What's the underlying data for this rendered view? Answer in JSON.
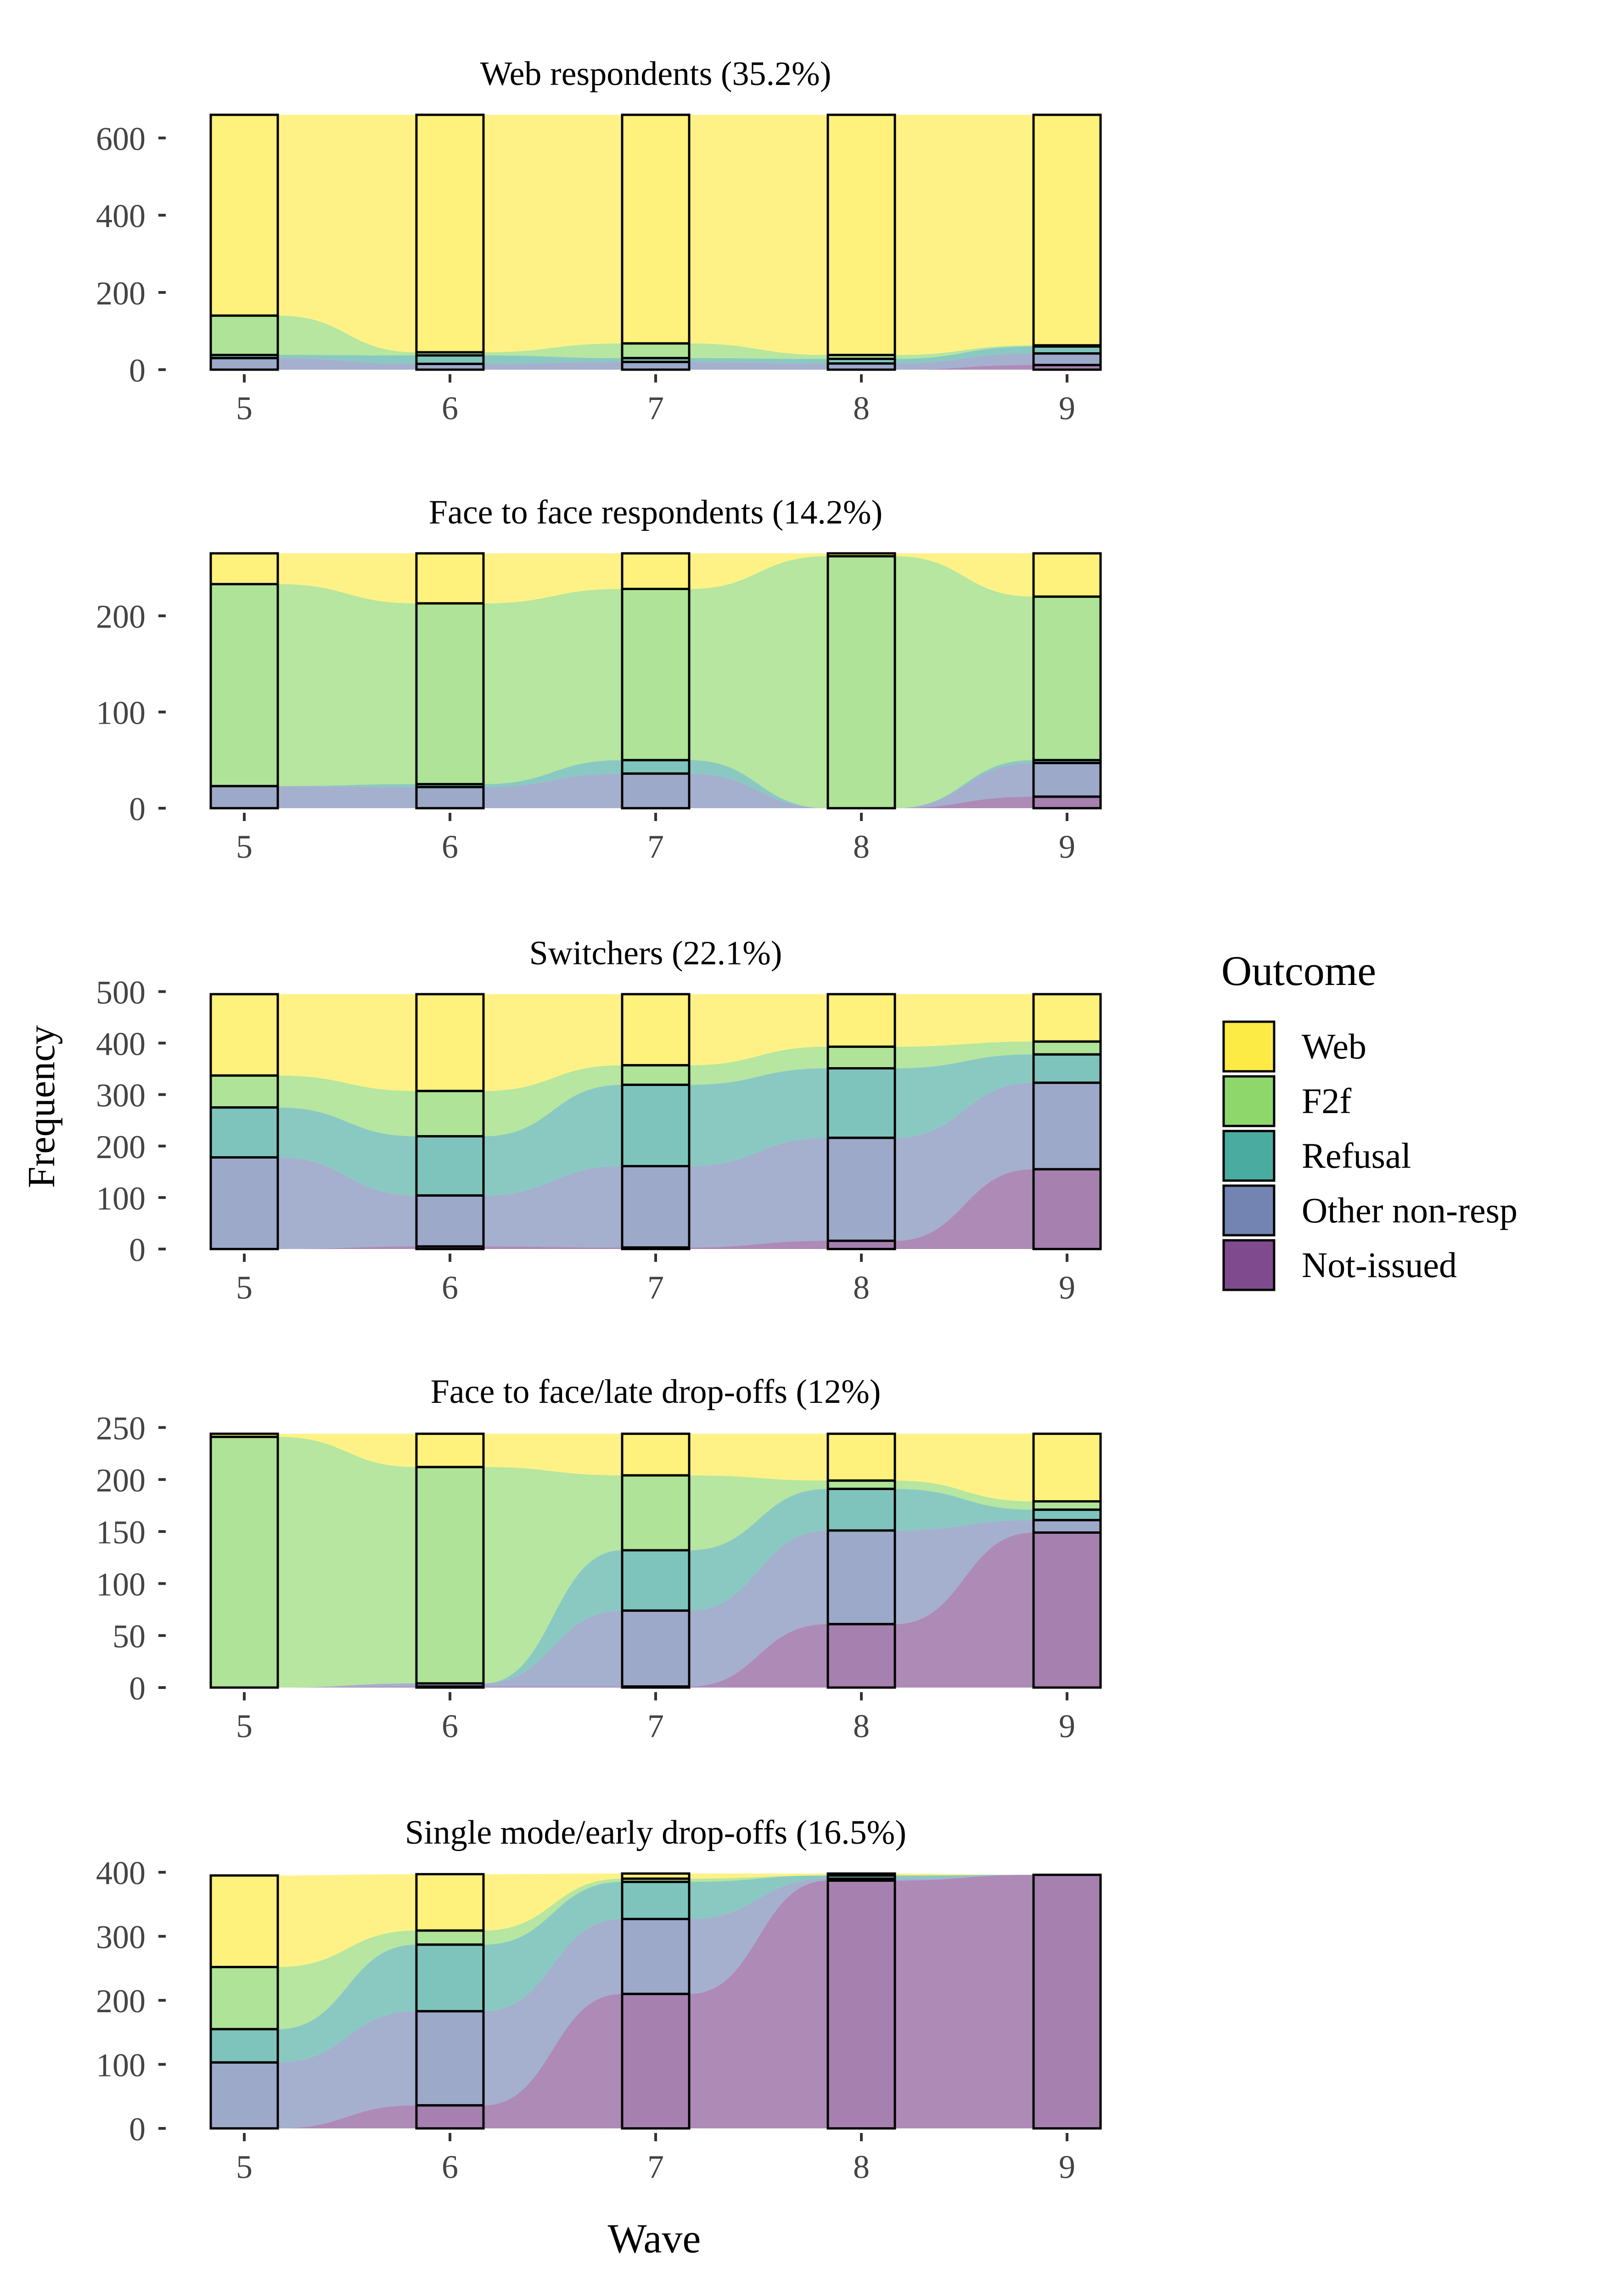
{
  "figure": {
    "ylabel": "Frequency",
    "xlabel": "Wave"
  },
  "legend": {
    "title": "Outcome",
    "items": [
      {
        "label": "Web",
        "color": "#FDE725"
      },
      {
        "label": "F2f",
        "color": "#7AD151"
      },
      {
        "label": "Refusal",
        "color": "#2A9D8F"
      },
      {
        "label": "Other non-resp",
        "color": "#5B6FA5"
      },
      {
        "label": "Not-issued",
        "color": "#6A2C7A"
      }
    ]
  },
  "chart_data": [
    {
      "type": "alluvial",
      "title": "Web respondents (35.2%)",
      "x": [
        5,
        6,
        7,
        8,
        9
      ],
      "ylim": [
        0,
        660
      ],
      "yticks": [
        0,
        200,
        400,
        600
      ],
      "stack_order": [
        "Not-issued",
        "Other non-resp",
        "Refusal",
        "F2f",
        "Web"
      ],
      "series": [
        {
          "name": "Web",
          "values": [
            520,
            615,
            592,
            622,
            597
          ]
        },
        {
          "name": "F2f",
          "values": [
            102,
            8,
            38,
            10,
            3
          ]
        },
        {
          "name": "Refusal",
          "values": [
            8,
            22,
            10,
            12,
            18
          ]
        },
        {
          "name": "Other non-resp",
          "values": [
            30,
            15,
            20,
            16,
            30
          ]
        },
        {
          "name": "Not-issued",
          "values": [
            0,
            0,
            0,
            0,
            12
          ]
        }
      ]
    },
    {
      "type": "alluvial",
      "title": "Face to face respondents (14.2%)",
      "x": [
        5,
        6,
        7,
        8,
        9
      ],
      "ylim": [
        0,
        265
      ],
      "yticks": [
        0,
        100,
        200
      ],
      "stack_order": [
        "Not-issued",
        "Other non-resp",
        "Refusal",
        "F2f",
        "Web"
      ],
      "series": [
        {
          "name": "Web",
          "values": [
            32,
            52,
            37,
            3,
            45
          ]
        },
        {
          "name": "F2f",
          "values": [
            210,
            188,
            178,
            262,
            170
          ]
        },
        {
          "name": "Refusal",
          "values": [
            0,
            3,
            14,
            0,
            3
          ]
        },
        {
          "name": "Other non-resp",
          "values": [
            23,
            22,
            36,
            0,
            35
          ]
        },
        {
          "name": "Not-issued",
          "values": [
            0,
            0,
            0,
            0,
            12
          ]
        }
      ]
    },
    {
      "type": "alluvial",
      "title": "Switchers (22.1%)",
      "x": [
        5,
        6,
        7,
        8,
        9
      ],
      "ylim": [
        0,
        495
      ],
      "yticks": [
        0,
        100,
        200,
        300,
        400,
        500
      ],
      "stack_order": [
        "Not-issued",
        "Other non-resp",
        "Refusal",
        "F2f",
        "Web"
      ],
      "series": [
        {
          "name": "Web",
          "values": [
            158,
            188,
            138,
            102,
            92
          ]
        },
        {
          "name": "F2f",
          "values": [
            62,
            88,
            38,
            42,
            25
          ]
        },
        {
          "name": "Refusal",
          "values": [
            97,
            115,
            158,
            135,
            55
          ]
        },
        {
          "name": "Other non-resp",
          "values": [
            178,
            99,
            158,
            200,
            168
          ]
        },
        {
          "name": "Not-issued",
          "values": [
            0,
            5,
            3,
            16,
            155
          ]
        }
      ]
    },
    {
      "type": "alluvial",
      "title": "Face to face/late drop-offs (12%)",
      "x": [
        5,
        6,
        7,
        8,
        9
      ],
      "ylim": [
        0,
        245
      ],
      "yticks": [
        0,
        50,
        100,
        150,
        200,
        250
      ],
      "stack_order": [
        "Not-issued",
        "Other non-resp",
        "Refusal",
        "F2f",
        "Web"
      ],
      "series": [
        {
          "name": "Web",
          "values": [
            3,
            32,
            40,
            45,
            65
          ]
        },
        {
          "name": "F2f",
          "values": [
            241,
            208,
            72,
            8,
            8
          ]
        },
        {
          "name": "Refusal",
          "values": [
            0,
            0,
            58,
            40,
            10
          ]
        },
        {
          "name": "Other non-resp",
          "values": [
            0,
            3,
            73,
            90,
            12
          ]
        },
        {
          "name": "Not-issued",
          "values": [
            0,
            1,
            1,
            61,
            149
          ]
        }
      ]
    },
    {
      "type": "alluvial",
      "title": "Single mode/early drop-offs (16.5%)",
      "x": [
        5,
        6,
        7,
        8,
        9
      ],
      "ylim": [
        0,
        398
      ],
      "yticks": [
        0,
        100,
        200,
        300,
        400
      ],
      "stack_order": [
        "Not-issued",
        "Other non-resp",
        "Refusal",
        "F2f",
        "Web"
      ],
      "series": [
        {
          "name": "Web",
          "values": [
            143,
            88,
            8,
            3,
            0
          ]
        },
        {
          "name": "F2f",
          "values": [
            97,
            22,
            5,
            0,
            0
          ]
        },
        {
          "name": "Refusal",
          "values": [
            52,
            104,
            58,
            5,
            0
          ]
        },
        {
          "name": "Other non-resp",
          "values": [
            103,
            147,
            117,
            3,
            0
          ]
        },
        {
          "name": "Not-issued",
          "values": [
            0,
            36,
            210,
            387,
            396
          ]
        }
      ]
    }
  ]
}
